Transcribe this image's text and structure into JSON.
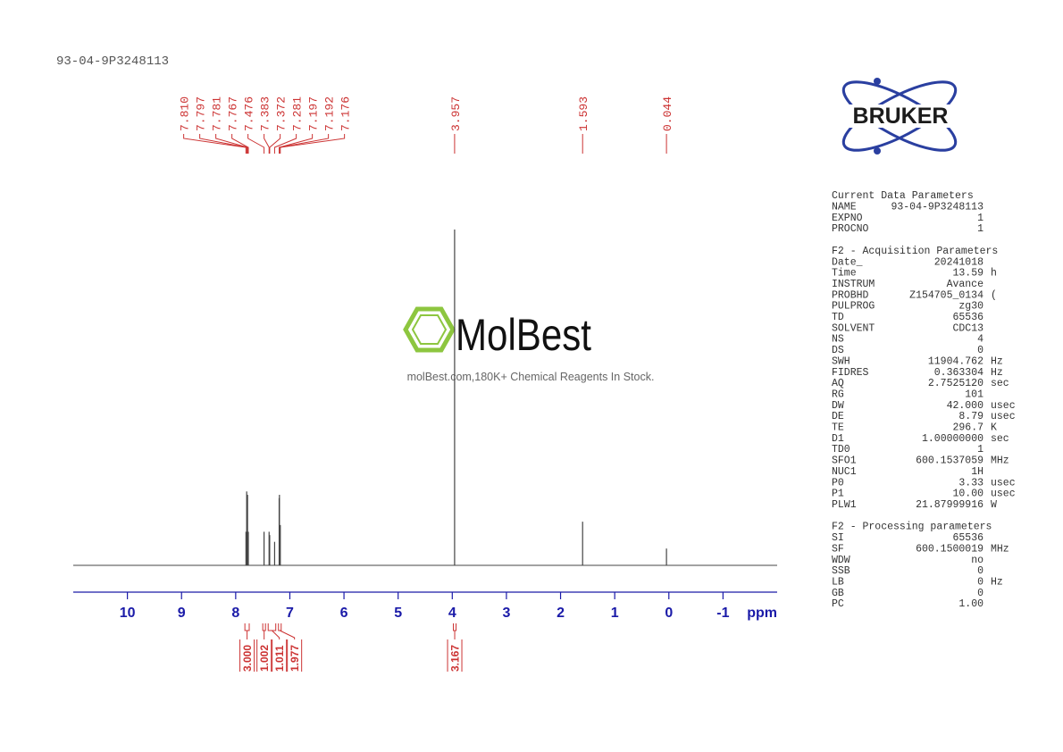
{
  "header": {
    "title": "93-04-9P3248113"
  },
  "chart_data": {
    "type": "nmr",
    "xlabel": "ppm",
    "xlim": [
      11.0,
      -2.0
    ],
    "xticks": [
      10,
      9,
      8,
      7,
      6,
      5,
      4,
      3,
      2,
      1,
      0,
      -1
    ],
    "ylim": [
      0,
      100
    ],
    "color": "#444444",
    "label_color": "#cc3333",
    "axis_color": "#1a1aa8",
    "peaks": [
      {
        "value": 7.81,
        "label": "7.810"
      },
      {
        "value": 7.797,
        "label": "7.797"
      },
      {
        "value": 7.781,
        "label": "7.781"
      },
      {
        "value": 7.767,
        "label": "7.767"
      },
      {
        "value": 7.476,
        "label": "7.476"
      },
      {
        "value": 7.383,
        "label": "7.383"
      },
      {
        "value": 7.372,
        "label": "7.372"
      },
      {
        "value": 7.281,
        "label": "7.281"
      },
      {
        "value": 7.197,
        "label": "7.197"
      },
      {
        "value": 7.192,
        "label": "7.192"
      },
      {
        "value": 7.176,
        "label": "7.176"
      },
      {
        "value": 3.957,
        "label": "3.957"
      },
      {
        "value": 1.593,
        "label": "1.593"
      },
      {
        "value": 0.044,
        "label": "0.044"
      }
    ],
    "intensities": [
      10,
      22,
      21,
      10,
      10,
      10,
      9,
      7,
      20,
      21,
      12,
      100,
      13,
      5
    ],
    "integrals": [
      {
        "range": [
          7.83,
          7.75
        ],
        "value": 3.0,
        "label": "3.000"
      },
      {
        "range": [
          7.5,
          7.45
        ],
        "value": 1.002,
        "label": "1.002"
      },
      {
        "range": [
          7.4,
          7.26
        ],
        "value": 1.011,
        "label": "1.011"
      },
      {
        "range": [
          7.21,
          7.16
        ],
        "value": 1.977,
        "label": "1.977"
      },
      {
        "range": [
          3.98,
          3.93
        ],
        "value": 3.167,
        "label": "3.167"
      }
    ]
  },
  "watermark": {
    "brand": "MolBest",
    "tagline": "molBest.com,180K+ Chemical Reagents In Stock."
  },
  "logo": {
    "text": "BRUKER"
  },
  "parameters": [
    {
      "title": "Current Data Parameters",
      "rows": [
        [
          "NAME",
          "93-04-9P3248113"
        ],
        [
          "EXPNO",
          "1"
        ],
        [
          "PROCNO",
          "1"
        ]
      ]
    },
    {
      "title": "F2 - Acquisition Parameters",
      "rows": [
        [
          "Date_",
          "20241018"
        ],
        [
          "Time",
          "13.59",
          "h"
        ],
        [
          "INSTRUM",
          "Avance"
        ],
        [
          "PROBHD",
          "Z154705_0134",
          "("
        ],
        [
          "PULPROG",
          "zg30"
        ],
        [
          "TD",
          "65536"
        ],
        [
          "SOLVENT",
          "CDC13"
        ],
        [
          "NS",
          "4"
        ],
        [
          "DS",
          "0"
        ],
        [
          "SWH",
          "11904.762",
          "Hz"
        ],
        [
          "FIDRES",
          "0.363304",
          "Hz"
        ],
        [
          "AQ",
          "2.7525120",
          "sec"
        ],
        [
          "RG",
          "101"
        ],
        [
          "DW",
          "42.000",
          "usec"
        ],
        [
          "DE",
          "8.79",
          "usec"
        ],
        [
          "TE",
          "296.7",
          "K"
        ],
        [
          "D1",
          "1.00000000",
          "sec"
        ],
        [
          "TD0",
          "1"
        ],
        [
          "SFO1",
          "600.1537059",
          "MHz"
        ],
        [
          "NUC1",
          "1H"
        ],
        [
          "P0",
          "3.33",
          "usec"
        ],
        [
          "P1",
          "10.00",
          "usec"
        ],
        [
          "PLW1",
          "21.87999916",
          "W"
        ]
      ]
    },
    {
      "title": "F2 - Processing parameters",
      "rows": [
        [
          "SI",
          "65536"
        ],
        [
          "SF",
          "600.1500019",
          "MHz"
        ],
        [
          "WDW",
          "no"
        ],
        [
          "SSB",
          "0"
        ],
        [
          "LB",
          "0",
          "Hz"
        ],
        [
          "GB",
          "0"
        ],
        [
          "PC",
          "1.00"
        ]
      ]
    }
  ]
}
